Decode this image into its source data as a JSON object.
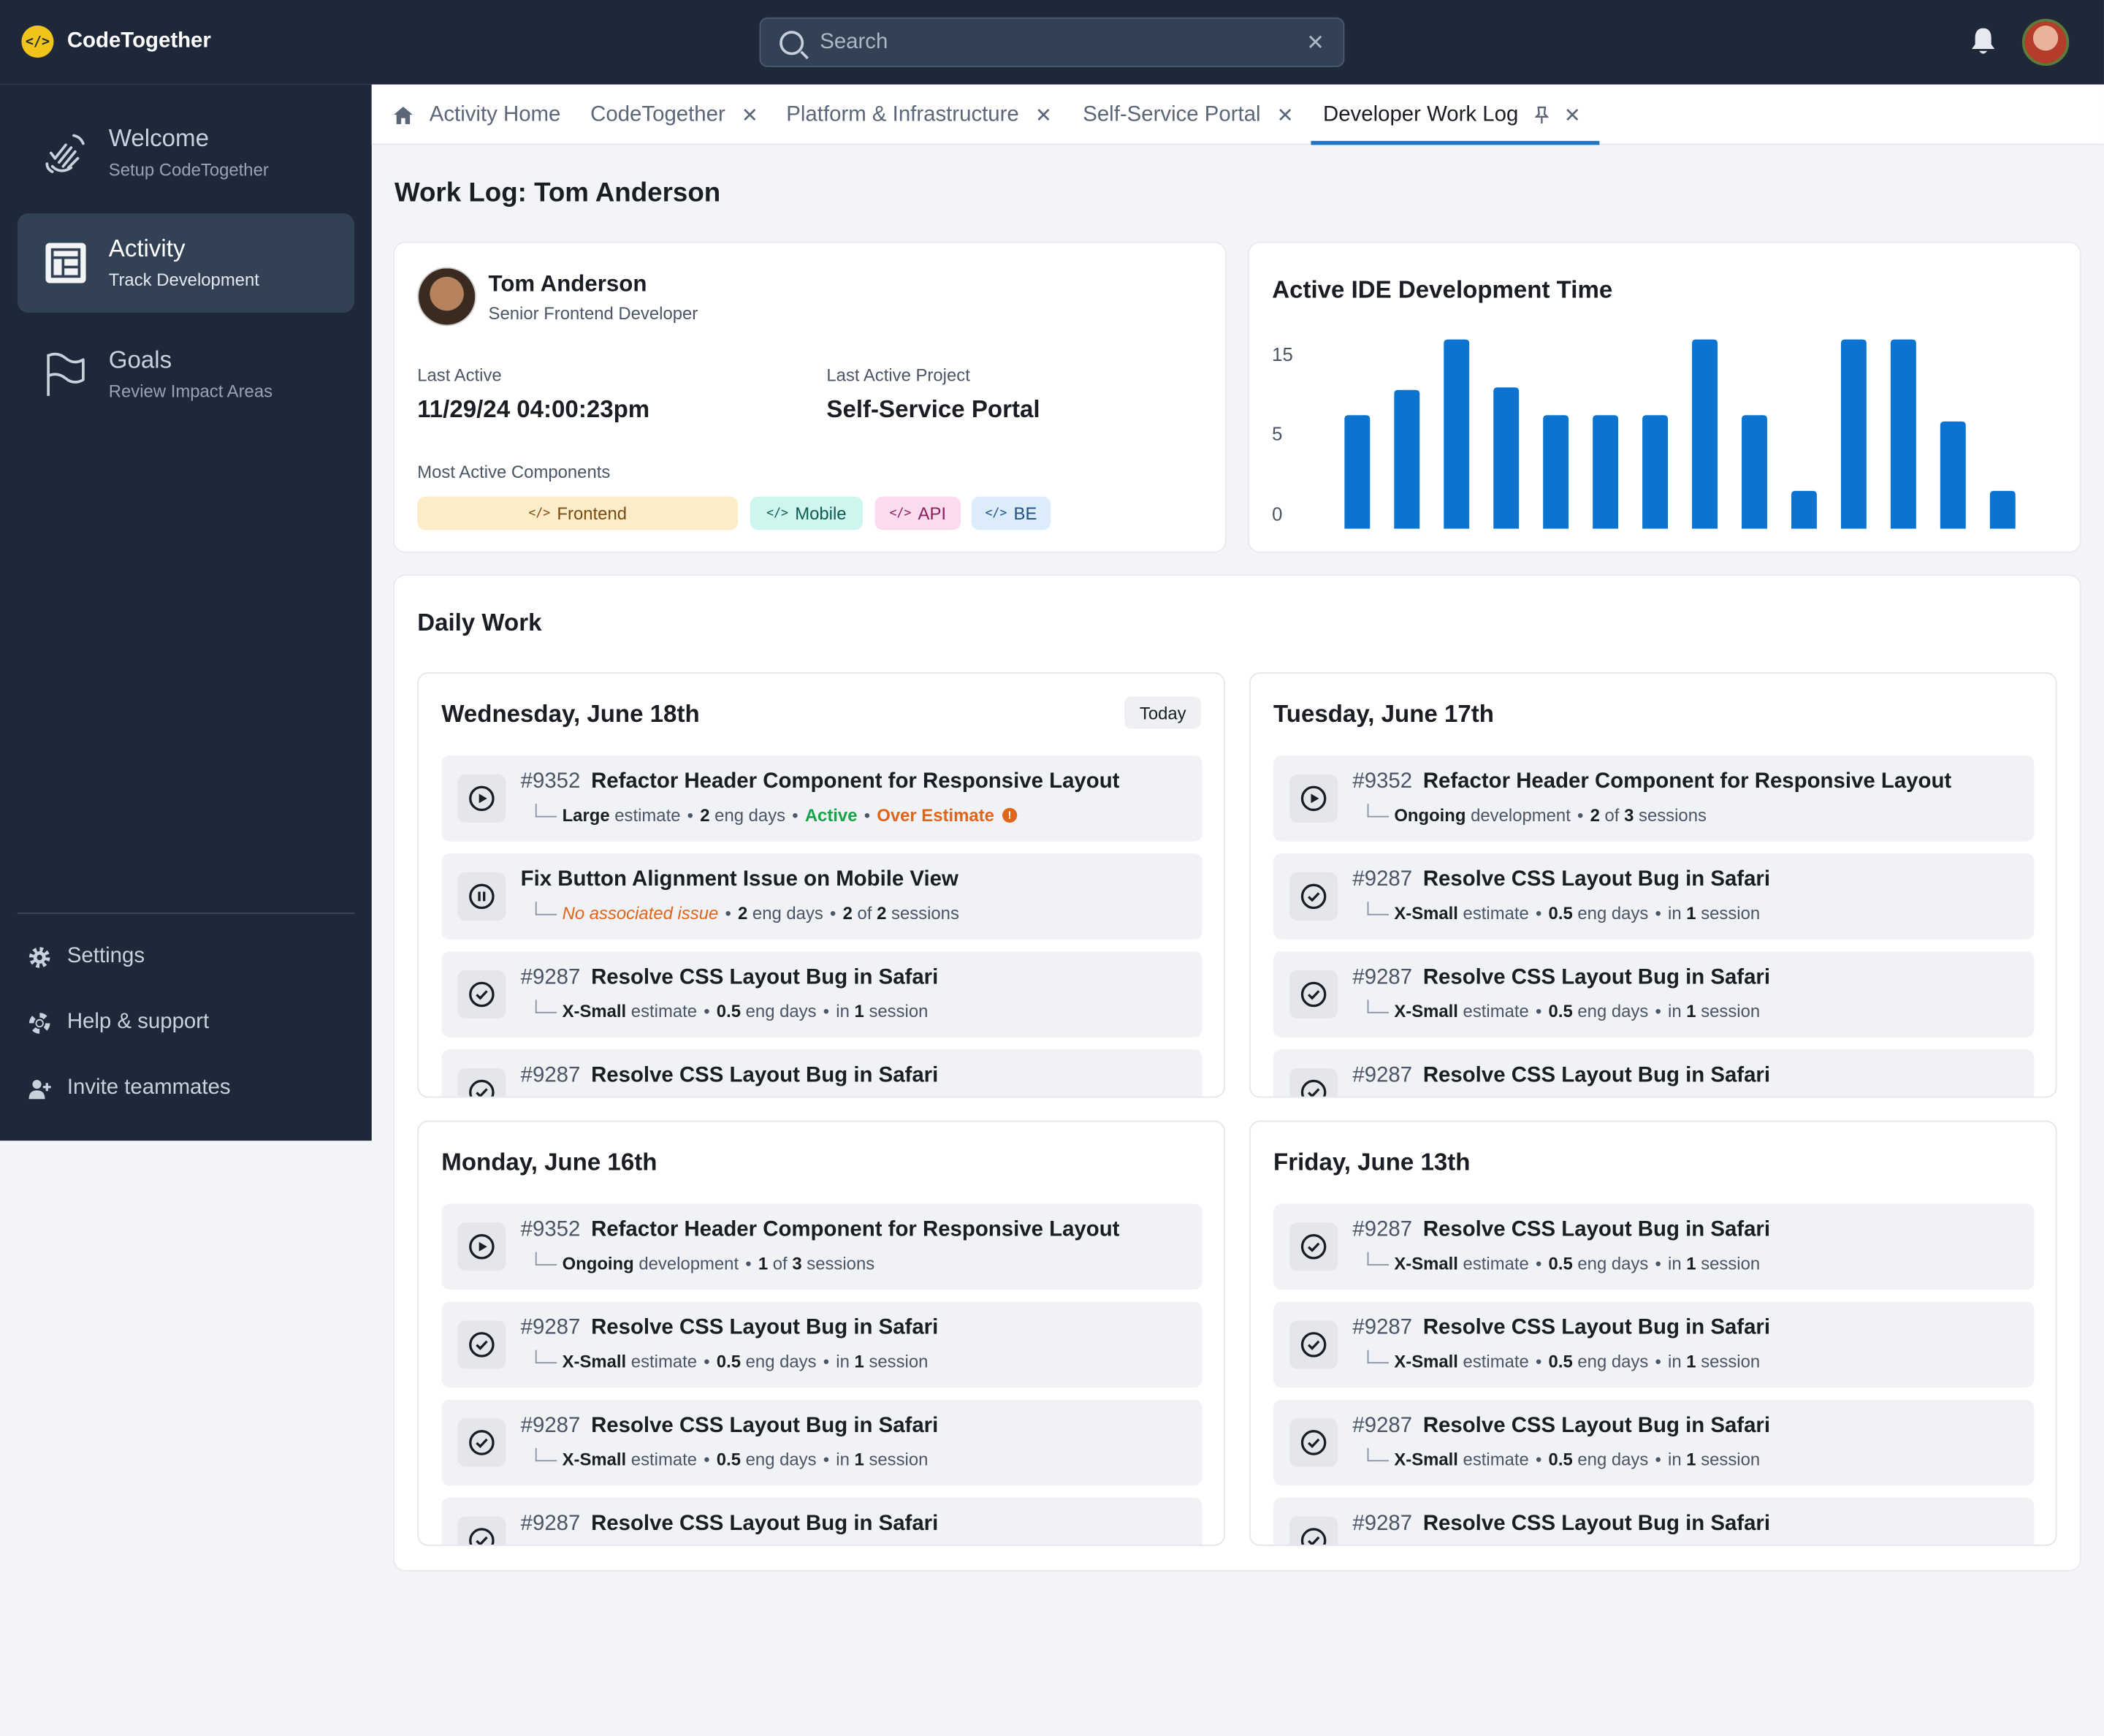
{
  "app": {
    "name": "CodeTogether"
  },
  "search": {
    "placeholder": "Search"
  },
  "sidebar": {
    "items": [
      {
        "title": "Welcome",
        "subtitle": "Setup CodeTogether"
      },
      {
        "title": "Activity",
        "subtitle": "Track Development"
      },
      {
        "title": "Goals",
        "subtitle": "Review Impact Areas"
      }
    ],
    "links": [
      {
        "label": "Settings",
        "icon": "gear-icon"
      },
      {
        "label": "Help & support",
        "icon": "lifebuoy-icon"
      },
      {
        "label": "Invite teammates",
        "icon": "add-user-icon"
      }
    ]
  },
  "tabs": [
    {
      "label": "Activity Home",
      "icon": "home-icon"
    },
    {
      "label": "CodeTogether"
    },
    {
      "label": "Platform & Infrastructure"
    },
    {
      "label": "Self-Service Portal"
    },
    {
      "label": "Developer Work Log",
      "active": true,
      "pinned": true
    }
  ],
  "page": {
    "title": "Work Log: Tom Anderson"
  },
  "profile": {
    "name": "Tom Anderson",
    "role": "Senior Frontend Developer",
    "last_active_label": "Last Active",
    "last_active_value": "11/29/24 04:00:23pm",
    "last_project_label": "Last Active Project",
    "last_project_value": "Self-Service Portal",
    "components_label": "Most Active Components",
    "components": [
      {
        "label": "Frontend",
        "bg": "#fdecc8",
        "fg": "#7a4b12"
      },
      {
        "label": "Mobile",
        "bg": "#cff5ef",
        "fg": "#0e5c52"
      },
      {
        "label": "API",
        "bg": "#fbdcef",
        "fg": "#8a1d5c"
      },
      {
        "label": "BE",
        "bg": "#dcecfb",
        "fg": "#1b4f86"
      }
    ]
  },
  "chart_data": {
    "type": "bar",
    "title": "Active IDE Development Time",
    "ytick_labels": [
      "15",
      "5",
      "0"
    ],
    "ylim": [
      0,
      15
    ],
    "values": [
      9,
      11,
      15,
      11.2,
      9,
      9,
      9,
      15,
      9,
      3,
      15,
      15,
      8.5,
      3
    ],
    "color": "#0a74d0",
    "grid": false
  },
  "daily": {
    "title": "Daily Work",
    "today_label": "Today",
    "days": [
      {
        "title": "Wednesday, June 18th",
        "today": true,
        "tasks": [
          {
            "icon": "play",
            "num": "#9352",
            "title": "Refactor Header Component for Responsive Layout",
            "meta": [
              {
                "t": "Large",
                "c": "b"
              },
              {
                "t": " estimate"
              },
              {
                "t": "•",
                "c": "dot"
              },
              {
                "t": "2",
                "c": "b"
              },
              {
                "t": " eng days"
              },
              {
                "t": "•",
                "c": "dot"
              },
              {
                "t": "Active",
                "c": "green"
              },
              {
                "t": "•",
                "c": "dot"
              },
              {
                "t": "Over Estimate",
                "c": "orange"
              },
              {
                "t": "!",
                "c": "warn"
              }
            ]
          },
          {
            "icon": "pause",
            "num": "",
            "title": "Fix Button Alignment Issue on Mobile View",
            "meta": [
              {
                "t": "No associated issue",
                "c": "orange-i"
              },
              {
                "t": "•",
                "c": "dot"
              },
              {
                "t": "2",
                "c": "b"
              },
              {
                "t": " eng days"
              },
              {
                "t": "•",
                "c": "dot"
              },
              {
                "t": "2",
                "c": "b"
              },
              {
                "t": " of "
              },
              {
                "t": "2",
                "c": "b"
              },
              {
                "t": " sessions"
              }
            ]
          },
          {
            "icon": "check",
            "num": "#9287",
            "title": "Resolve CSS Layout Bug in Safari",
            "meta": [
              {
                "t": "X-Small",
                "c": "b"
              },
              {
                "t": " estimate"
              },
              {
                "t": "•",
                "c": "dot"
              },
              {
                "t": "0.5",
                "c": "b"
              },
              {
                "t": " eng days"
              },
              {
                "t": "•",
                "c": "dot"
              },
              {
                "t": "in "
              },
              {
                "t": "1",
                "c": "b"
              },
              {
                "t": " session"
              }
            ]
          },
          {
            "icon": "check",
            "num": "#9287",
            "title": "Resolve CSS Layout Bug in Safari",
            "meta": []
          }
        ]
      },
      {
        "title": "Tuesday, June 17th",
        "tasks": [
          {
            "icon": "play",
            "num": "#9352",
            "title": "Refactor Header Component for Responsive Layout",
            "meta": [
              {
                "t": "Ongoing",
                "c": "b"
              },
              {
                "t": " development"
              },
              {
                "t": "•",
                "c": "dot"
              },
              {
                "t": "2",
                "c": "b"
              },
              {
                "t": " of "
              },
              {
                "t": "3",
                "c": "b"
              },
              {
                "t": " sessions"
              }
            ]
          },
          {
            "icon": "check",
            "num": "#9287",
            "title": "Resolve CSS Layout Bug in Safari",
            "meta": [
              {
                "t": "X-Small",
                "c": "b"
              },
              {
                "t": " estimate"
              },
              {
                "t": "•",
                "c": "dot"
              },
              {
                "t": "0.5",
                "c": "b"
              },
              {
                "t": " eng days"
              },
              {
                "t": "•",
                "c": "dot"
              },
              {
                "t": "in "
              },
              {
                "t": "1",
                "c": "b"
              },
              {
                "t": " session"
              }
            ]
          },
          {
            "icon": "check",
            "num": "#9287",
            "title": "Resolve CSS Layout Bug in Safari",
            "meta": [
              {
                "t": "X-Small",
                "c": "b"
              },
              {
                "t": " estimate"
              },
              {
                "t": "•",
                "c": "dot"
              },
              {
                "t": "0.5",
                "c": "b"
              },
              {
                "t": " eng days"
              },
              {
                "t": "•",
                "c": "dot"
              },
              {
                "t": "in "
              },
              {
                "t": "1",
                "c": "b"
              },
              {
                "t": " session"
              }
            ]
          },
          {
            "icon": "check",
            "num": "#9287",
            "title": "Resolve CSS Layout Bug in Safari",
            "meta": []
          }
        ]
      },
      {
        "title": "Monday, June 16th",
        "tasks": [
          {
            "icon": "play",
            "num": "#9352",
            "title": "Refactor Header Component for Responsive Layout",
            "meta": [
              {
                "t": "Ongoing",
                "c": "b"
              },
              {
                "t": " development"
              },
              {
                "t": "•",
                "c": "dot"
              },
              {
                "t": "1",
                "c": "b"
              },
              {
                "t": " of "
              },
              {
                "t": "3",
                "c": "b"
              },
              {
                "t": " sessions"
              }
            ]
          },
          {
            "icon": "check",
            "num": "#9287",
            "title": "Resolve CSS Layout Bug in Safari",
            "meta": [
              {
                "t": "X-Small",
                "c": "b"
              },
              {
                "t": " estimate"
              },
              {
                "t": "•",
                "c": "dot"
              },
              {
                "t": "0.5",
                "c": "b"
              },
              {
                "t": " eng days"
              },
              {
                "t": "•",
                "c": "dot"
              },
              {
                "t": "in "
              },
              {
                "t": "1",
                "c": "b"
              },
              {
                "t": " session"
              }
            ]
          },
          {
            "icon": "check",
            "num": "#9287",
            "title": "Resolve CSS Layout Bug in Safari",
            "meta": [
              {
                "t": "X-Small",
                "c": "b"
              },
              {
                "t": " estimate"
              },
              {
                "t": "•",
                "c": "dot"
              },
              {
                "t": "0.5",
                "c": "b"
              },
              {
                "t": " eng days"
              },
              {
                "t": "•",
                "c": "dot"
              },
              {
                "t": "in "
              },
              {
                "t": "1",
                "c": "b"
              },
              {
                "t": " session"
              }
            ]
          },
          {
            "icon": "check",
            "num": "#9287",
            "title": "Resolve CSS Layout Bug in Safari",
            "meta": []
          }
        ]
      },
      {
        "title": "Friday, June 13th",
        "tasks": [
          {
            "icon": "check",
            "num": "#9287",
            "title": "Resolve CSS Layout Bug in Safari",
            "meta": [
              {
                "t": "X-Small",
                "c": "b"
              },
              {
                "t": " estimate"
              },
              {
                "t": "•",
                "c": "dot"
              },
              {
                "t": "0.5",
                "c": "b"
              },
              {
                "t": " eng days"
              },
              {
                "t": "•",
                "c": "dot"
              },
              {
                "t": "in "
              },
              {
                "t": "1",
                "c": "b"
              },
              {
                "t": " session"
              }
            ]
          },
          {
            "icon": "check",
            "num": "#9287",
            "title": "Resolve CSS Layout Bug in Safari",
            "meta": [
              {
                "t": "X-Small",
                "c": "b"
              },
              {
                "t": " estimate"
              },
              {
                "t": "•",
                "c": "dot"
              },
              {
                "t": "0.5",
                "c": "b"
              },
              {
                "t": " eng days"
              },
              {
                "t": "•",
                "c": "dot"
              },
              {
                "t": "in "
              },
              {
                "t": "1",
                "c": "b"
              },
              {
                "t": " session"
              }
            ]
          },
          {
            "icon": "check",
            "num": "#9287",
            "title": "Resolve CSS Layout Bug in Safari",
            "meta": [
              {
                "t": "X-Small",
                "c": "b"
              },
              {
                "t": " estimate"
              },
              {
                "t": "•",
                "c": "dot"
              },
              {
                "t": "0.5",
                "c": "b"
              },
              {
                "t": " eng days"
              },
              {
                "t": "•",
                "c": "dot"
              },
              {
                "t": "in "
              },
              {
                "t": "1",
                "c": "b"
              },
              {
                "t": " session"
              }
            ]
          },
          {
            "icon": "check",
            "num": "#9287",
            "title": "Resolve CSS Layout Bug in Safari",
            "meta": []
          }
        ]
      }
    ]
  }
}
